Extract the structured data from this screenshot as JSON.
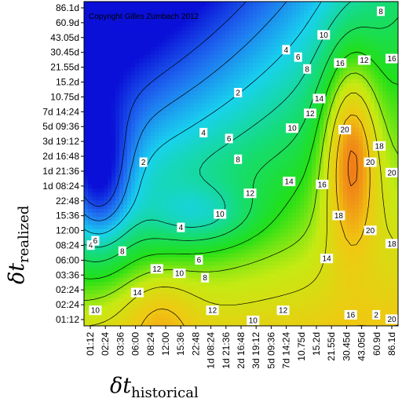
{
  "chart_data": {
    "type": "heatmap",
    "copyright": "Copyright Gilles Zumbach 2012",
    "x_axis": {
      "symbol": "δt",
      "subscript": "historical",
      "ticks": [
        "01:12",
        "02:24",
        "03:36",
        "06:00",
        "08:24",
        "12:00",
        "15:36",
        "22:48",
        "1d 08:24",
        "1d 21:36",
        "2d 16:48",
        "3d 19:12",
        "5d 09:36",
        "7d 14:24",
        "10.75d",
        "15.2d",
        "21.55d",
        "30.45d",
        "43.05d",
        "60.9d",
        "86.1d"
      ]
    },
    "y_axis": {
      "symbol": "δt",
      "subscript": "realized",
      "ticks": [
        "01:12",
        "02:24",
        "02:24",
        "03:36",
        "06:00",
        "08:24",
        "12:00",
        "15:36",
        "22:48",
        "1d 08:24",
        "1d 21:36",
        "2d 16:48",
        "3d 19:12",
        "5d 09:36",
        "7d 14:24",
        "10.75d",
        "15.2d",
        "21.55d",
        "30.45d",
        "43.05d",
        "60.9d",
        "86.1d"
      ]
    },
    "contour_levels": [
      2,
      4,
      6,
      8,
      10,
      12,
      14,
      16,
      18,
      20
    ],
    "value_range": [
      0,
      24
    ],
    "colormap": [
      "#0a10d8",
      "#1f6ef0",
      "#18d2ee",
      "#15dc78",
      "#22e016",
      "#c6ea12",
      "#f0c812",
      "#f0641a",
      "#e01e10"
    ],
    "contour_labels": [
      {
        "v": "2",
        "x": 19.0,
        "y": 0.3
      },
      {
        "v": "8",
        "x": 19.3,
        "y": 20.8
      },
      {
        "v": "20",
        "x": 20.4,
        "y": 0.0
      },
      {
        "v": "10",
        "x": 15.5,
        "y": 19.2
      },
      {
        "v": "4",
        "x": 13.0,
        "y": 18.2
      },
      {
        "v": "6",
        "x": 13.8,
        "y": 17.7
      },
      {
        "v": "8",
        "x": 14.4,
        "y": 16.9
      },
      {
        "v": "12",
        "x": 18.2,
        "y": 17.5
      },
      {
        "v": "16",
        "x": 20.2,
        "y": 17.6
      },
      {
        "v": "16",
        "x": 16.6,
        "y": 17.3
      },
      {
        "v": "2",
        "x": 9.8,
        "y": 15.3
      },
      {
        "v": "14",
        "x": 15.2,
        "y": 14.9
      },
      {
        "v": "12",
        "x": 14.6,
        "y": 13.9
      },
      {
        "v": "10",
        "x": 13.4,
        "y": 12.9
      },
      {
        "v": "6",
        "x": 9.2,
        "y": 12.2
      },
      {
        "v": "4",
        "x": 7.5,
        "y": 12.6
      },
      {
        "v": "20",
        "x": 16.9,
        "y": 12.8
      },
      {
        "v": "18",
        "x": 19.2,
        "y": 11.7
      },
      {
        "v": "8",
        "x": 9.8,
        "y": 10.8
      },
      {
        "v": "2",
        "x": 3.5,
        "y": 10.6
      },
      {
        "v": "20",
        "x": 18.6,
        "y": 10.6
      },
      {
        "v": "20",
        "x": 20.3,
        "y": 9.9
      },
      {
        "v": "14",
        "x": 13.2,
        "y": 9.3
      },
      {
        "v": "16",
        "x": 15.4,
        "y": 9.1
      },
      {
        "v": "12",
        "x": 10.6,
        "y": 8.5
      },
      {
        "v": "10",
        "x": 8.6,
        "y": 7.1
      },
      {
        "v": "18",
        "x": 16.5,
        "y": 7.0
      },
      {
        "v": "20",
        "x": 18.6,
        "y": 6.0
      },
      {
        "v": "4",
        "x": 6.0,
        "y": 6.2
      },
      {
        "v": "4",
        "x": 0.0,
        "y": 5.0
      },
      {
        "v": "6",
        "x": 0.3,
        "y": 5.3
      },
      {
        "v": "8",
        "x": 2.1,
        "y": 4.6
      },
      {
        "v": "18",
        "x": 20.2,
        "y": 5.1
      },
      {
        "v": "6",
        "x": 7.2,
        "y": 4.0
      },
      {
        "v": "12",
        "x": 4.4,
        "y": 3.4
      },
      {
        "v": "10",
        "x": 5.9,
        "y": 3.1
      },
      {
        "v": "8",
        "x": 7.6,
        "y": 2.8
      },
      {
        "v": "14",
        "x": 15.7,
        "y": 4.1
      },
      {
        "v": "14",
        "x": 3.1,
        "y": 1.8
      },
      {
        "v": "10",
        "x": 0.3,
        "y": 0.6
      },
      {
        "v": "12",
        "x": 8.1,
        "y": 0.6
      },
      {
        "v": "12",
        "x": 12.8,
        "y": 0.6
      },
      {
        "v": "16",
        "x": 17.3,
        "y": 0.3
      },
      {
        "v": "10",
        "x": 10.8,
        "y": -0.2
      }
    ]
  }
}
